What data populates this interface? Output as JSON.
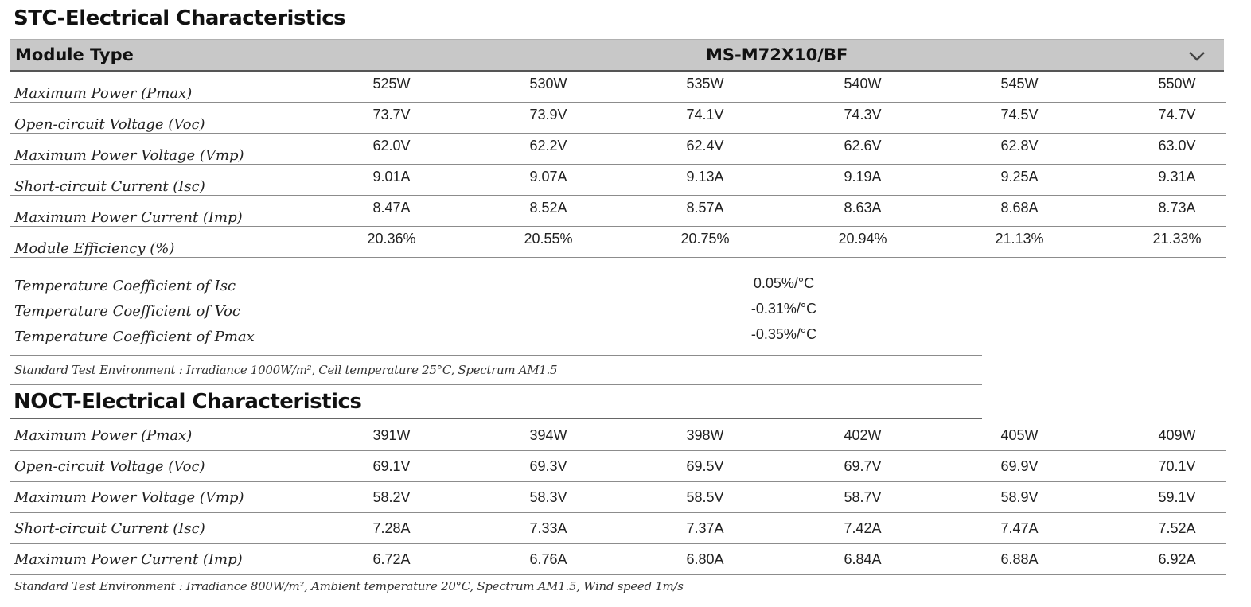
{
  "stc": {
    "title": "STC-Electrical Characteristics",
    "module_type_label": "Module Type",
    "module_type_value": "MS-M72X10/BF",
    "rows": [
      {
        "label": "Maximum Power (Pmax)",
        "values": [
          "525W",
          "530W",
          "535W",
          "540W",
          "545W",
          "550W"
        ]
      },
      {
        "label": "Open-circuit Voltage (Voc)",
        "values": [
          "73.7V",
          "73.9V",
          "74.1V",
          "74.3V",
          "74.5V",
          "74.7V"
        ]
      },
      {
        "label": "Maximum Power Voltage (Vmp)",
        "values": [
          "62.0V",
          "62.2V",
          "62.4V",
          "62.6V",
          "62.8V",
          "63.0V"
        ]
      },
      {
        "label": "Short-circuit Current (Isc)",
        "values": [
          "9.01A",
          "9.07A",
          "9.13A",
          "9.19A",
          "9.25A",
          "9.31A"
        ]
      },
      {
        "label": "Maximum Power Current (Imp)",
        "values": [
          "8.47A",
          "8.52A",
          "8.57A",
          "8.63A",
          "8.68A",
          "8.73A"
        ]
      },
      {
        "label": "Module Efficiency (%)",
        "values": [
          "20.36%",
          "20.55%",
          "20.75%",
          "20.94%",
          "21.13%",
          "21.33%"
        ]
      }
    ],
    "coefficients": [
      {
        "label": "Temperature Coefficient of Isc",
        "value": "0.05%/°C"
      },
      {
        "label": "Temperature Coefficient of Voc",
        "value": "-0.31%/°C"
      },
      {
        "label": "Temperature Coefficient of Pmax",
        "value": "-0.35%/°C"
      }
    ],
    "environment": "Standard Test Environment : Irradiance 1000W/m², Cell temperature 25°C, Spectrum AM1.5"
  },
  "noct": {
    "title": "NOCT-Electrical Characteristics",
    "rows": [
      {
        "label": "Maximum Power (Pmax)",
        "values": [
          "391W",
          "394W",
          "398W",
          "402W",
          "405W",
          "409W"
        ]
      },
      {
        "label": "Open-circuit Voltage (Voc)",
        "values": [
          "69.1V",
          "69.3V",
          "69.5V",
          "69.7V",
          "69.9V",
          "70.1V"
        ]
      },
      {
        "label": "Maximum Power Voltage (Vmp)",
        "values": [
          "58.2V",
          "58.3V",
          "58.5V",
          "58.7V",
          "58.9V",
          "59.1V"
        ]
      },
      {
        "label": "Short-circuit Current (Isc)",
        "values": [
          "7.28A",
          "7.33A",
          "7.37A",
          "7.42A",
          "7.47A",
          "7.52A"
        ]
      },
      {
        "label": "Maximum Power Current (Imp)",
        "values": [
          "6.72A",
          "6.76A",
          "6.80A",
          "6.84A",
          "6.88A",
          "6.92A"
        ]
      }
    ],
    "environment": "Standard Test Environment : Irradiance 800W/m², Ambient temperature 20°C, Spectrum AM1.5, Wind speed 1m/s"
  },
  "icons": {
    "module_type_toggle": "chevron-down-icon"
  }
}
